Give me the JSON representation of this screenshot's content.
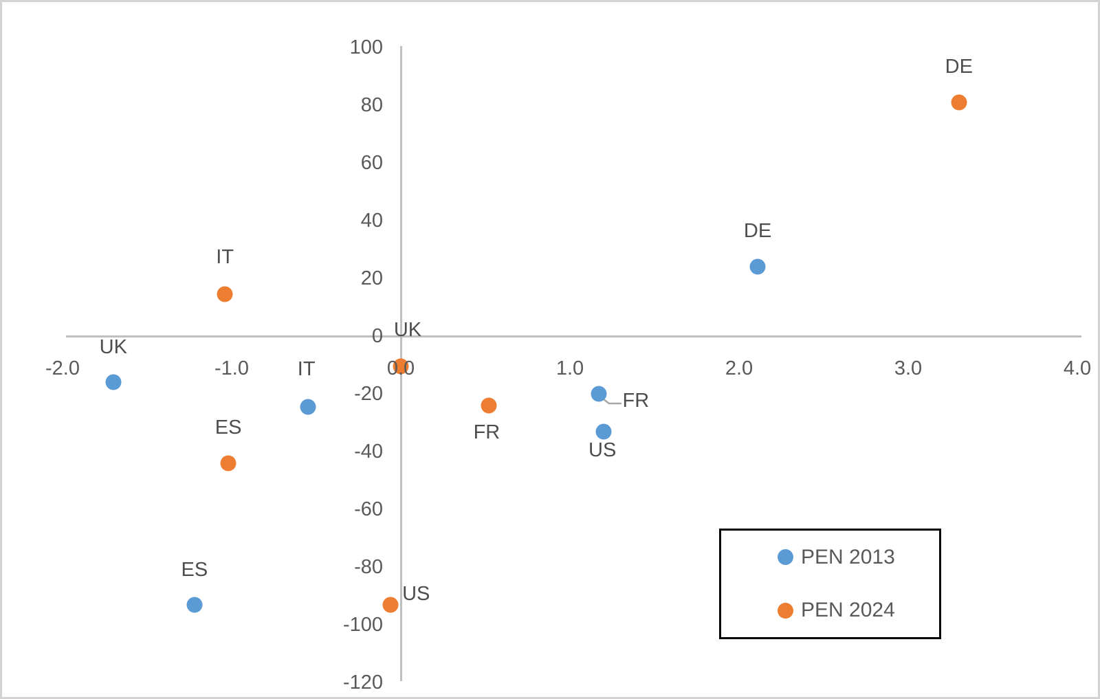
{
  "figure": {
    "background": "#ffffff",
    "frame_color": "#d4d2d2"
  },
  "chart_data": {
    "type": "scatter",
    "title": "",
    "xlabel": "",
    "ylabel": "",
    "xlim": [
      -2.0,
      4.0
    ],
    "ylim": [
      -120,
      100
    ],
    "grid": false,
    "axis_color": "#bfbfbf",
    "tick_text_color": "#595959",
    "point_label_color": "#4d4d4d",
    "x_ticks": [
      {
        "label": "-2.0",
        "value": -2
      },
      {
        "label": "-1.0",
        "value": -1
      },
      {
        "label": "0.0",
        "value": 0
      },
      {
        "label": "1.0",
        "value": 1
      },
      {
        "label": "2.0",
        "value": 2
      },
      {
        "label": "3.0",
        "value": 3
      },
      {
        "label": "4.0",
        "value": 4
      }
    ],
    "y_ticks": [
      {
        "label": "100",
        "value": 100
      },
      {
        "label": "80",
        "value": 80
      },
      {
        "label": "60",
        "value": 60
      },
      {
        "label": "40",
        "value": 40
      },
      {
        "label": "20",
        "value": 20
      },
      {
        "label": "0",
        "value": 0
      },
      {
        "label": "-20",
        "value": -20
      },
      {
        "label": "-40",
        "value": -40
      },
      {
        "label": "-60",
        "value": -60
      },
      {
        "label": "-80",
        "value": -80
      },
      {
        "label": "-100",
        "value": -100
      },
      {
        "label": "-120",
        "value": -120
      }
    ],
    "series": [
      {
        "name": "PEN 2013",
        "color": "#5b9bd5",
        "points": [
          {
            "label": "UK",
            "x": -1.7,
            "y": -16,
            "label_dx": 0,
            "label_dy": -51
          },
          {
            "label": "IT",
            "x": -0.55,
            "y": -24.5,
            "label_dx": -2,
            "label_dy": -55
          },
          {
            "label": "ES",
            "x": -1.22,
            "y": -93,
            "label_dx": 0,
            "label_dy": -51
          },
          {
            "label": "FR",
            "x": 1.17,
            "y": -20,
            "label_dx": 54,
            "label_dy": 10,
            "leader": true,
            "leader_points": [
              [
                6,
                7
              ],
              [
                15,
                14
              ],
              [
                33,
                14
              ]
            ]
          },
          {
            "label": "US",
            "x": 1.2,
            "y": -33,
            "label_dx": -2,
            "label_dy": 27
          },
          {
            "label": "DE",
            "x": 2.11,
            "y": 24,
            "label_dx": 0,
            "label_dy": -52
          }
        ]
      },
      {
        "name": "PEN 2024",
        "color": "#ed7d31",
        "points": [
          {
            "label": "IT",
            "x": -1.04,
            "y": 14.5,
            "label_dx": 0,
            "label_dy": -54
          },
          {
            "label": "ES",
            "x": -1.02,
            "y": -44,
            "label_dx": 0,
            "label_dy": -52
          },
          {
            "label": "UK",
            "x": 0.0,
            "y": -10.5,
            "label_dx": 10,
            "label_dy": -53
          },
          {
            "label": "US",
            "x": -0.06,
            "y": -93,
            "label_dx": 37,
            "label_dy": -16
          },
          {
            "label": "FR",
            "x": 0.52,
            "y": -24,
            "label_dx": -3,
            "label_dy": 39
          },
          {
            "label": "DE",
            "x": 3.3,
            "y": 81,
            "label_dx": 0,
            "label_dy": -52
          }
        ]
      }
    ],
    "legend": {
      "position": "bottom-right",
      "border_color": "#000000",
      "entries": [
        {
          "label": "PEN 2013",
          "color": "#5b9bd5"
        },
        {
          "label": "PEN 2024",
          "color": "#ed7d31"
        }
      ]
    },
    "leader_line_color": "#a6a6a6"
  }
}
